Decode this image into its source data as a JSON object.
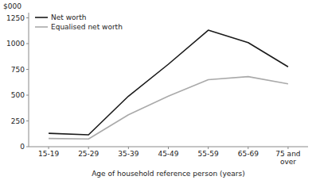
{
  "chart_data": {
    "type": "line",
    "categories": [
      "15-19",
      "25-29",
      "35-39",
      "45-49",
      "55-59",
      "65-69",
      "75 and\nover"
    ],
    "series": [
      {
        "name": "Net worth",
        "color": "#1a1a1a",
        "values": [
          130,
          115,
          490,
          800,
          1130,
          1010,
          775
        ]
      },
      {
        "name": "Equalised net worth",
        "color": "#aaaaaa",
        "values": [
          80,
          75,
          310,
          490,
          650,
          680,
          610
        ]
      }
    ],
    "xlabel": "Age of household reference person (years)",
    "ylabel": "$000",
    "ylim": [
      0,
      1300
    ],
    "yticks": [
      0,
      250,
      500,
      750,
      1000,
      1250
    ],
    "grid": false,
    "legend": "upper left"
  }
}
